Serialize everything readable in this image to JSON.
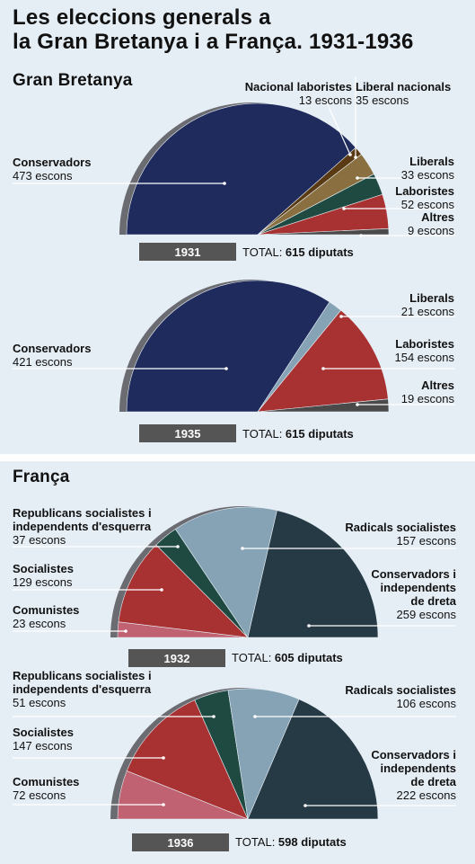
{
  "title_line1": "Les eleccions generals a",
  "title_line2": "la Gran Bretanya i a França. 1931-1936",
  "gb_heading": "Gran Bretanya",
  "fr_heading": "França",
  "colors": {
    "panel_bg": "#e6eef5",
    "conservadors_gb": "#1e2b5c",
    "nacional_laboristes": "#5a3a12",
    "liberal_nacionals": "#8a7040",
    "liberals_gb": "#1f4a42",
    "laboristes": "#a83232",
    "altres_gb": "#4a4a4a",
    "liberals_gb_1935": "#86a3b5",
    "laboristes_1931": "#86a3b5",
    "comunistes": "#c06272",
    "socialistes": "#a83232",
    "republicans": "#1f4a42",
    "radicals": "#86a3b5",
    "conservadors_fr": "#263a45",
    "year_box": "#555555"
  },
  "chart_data": [
    {
      "type": "pie",
      "subtype": "hemicycle",
      "year": "1931",
      "total_text": "TOTAL:",
      "total_value": "615 diputats",
      "slices": [
        {
          "name": "Conservadors",
          "seats": 473,
          "label": "473 escons"
        },
        {
          "name": "Nacional laboristes",
          "seats": 13,
          "label": "13 escons"
        },
        {
          "name": "Liberal nacionals",
          "seats": 35,
          "label": "35 escons"
        },
        {
          "name": "Liberals",
          "seats": 33,
          "label": "33 escons"
        },
        {
          "name": "Laboristes",
          "seats": 52,
          "label": "52 escons"
        },
        {
          "name": "Altres",
          "seats": 9,
          "label": "9 escons"
        }
      ]
    },
    {
      "type": "pie",
      "subtype": "hemicycle",
      "year": "1935",
      "total_text": "TOTAL:",
      "total_value": "615 diputats",
      "slices": [
        {
          "name": "Conservadors",
          "seats": 421,
          "label": "421 escons"
        },
        {
          "name": "Liberals",
          "seats": 21,
          "label": "21 escons"
        },
        {
          "name": "Laboristes",
          "seats": 154,
          "label": "154 escons"
        },
        {
          "name": "Altres",
          "seats": 19,
          "label": "19 escons"
        }
      ]
    },
    {
      "type": "pie",
      "subtype": "hemicycle",
      "year": "1932",
      "total_text": "TOTAL:",
      "total_value": "605 diputats",
      "slices": [
        {
          "name": "Comunistes",
          "seats": 23,
          "label": "23 escons"
        },
        {
          "name": "Socialistes",
          "seats": 129,
          "label": "129 escons"
        },
        {
          "name": "Republicans socialistes i\nindependents d'esquerra",
          "seats": 37,
          "label": "37 escons"
        },
        {
          "name": "Radicals socialistes",
          "seats": 157,
          "label": "157 escons"
        },
        {
          "name": "Conservadors i\nindependents\nde dreta",
          "seats": 259,
          "label": "259 escons"
        }
      ]
    },
    {
      "type": "pie",
      "subtype": "hemicycle",
      "year": "1936",
      "total_text": "TOTAL:",
      "total_value": "598 diputats",
      "slices": [
        {
          "name": "Comunistes",
          "seats": 72,
          "label": "72 escons"
        },
        {
          "name": "Socialistes",
          "seats": 147,
          "label": "147 escons"
        },
        {
          "name": "Republicans socialistes i\nindependents d'esquerra",
          "seats": 51,
          "label": "51 escons"
        },
        {
          "name": "Radicals socialistes",
          "seats": 106,
          "label": "106 escons"
        },
        {
          "name": "Conservadors i\nindependents\nde dreta",
          "seats": 222,
          "label": "222 escons"
        }
      ]
    }
  ]
}
